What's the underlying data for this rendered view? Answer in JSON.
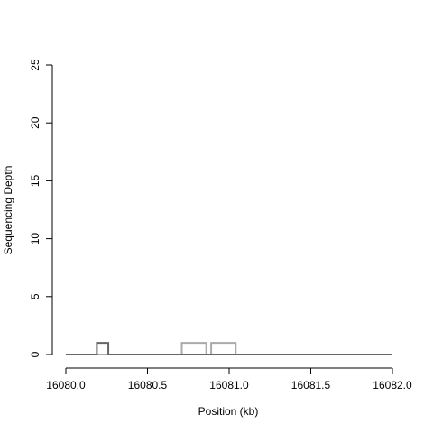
{
  "chart_data": {
    "type": "line",
    "xlabel": "Position (kb)",
    "ylabel": "Sequencing Depth",
    "xlim": [
      16080.0,
      16082.0
    ],
    "xticks": [
      {
        "value": 16080.0,
        "label": "16080.0"
      },
      {
        "value": 16080.5,
        "label": "16080.5"
      },
      {
        "value": 16081.0,
        "label": "16081.0"
      },
      {
        "value": 16081.5,
        "label": "16081.5"
      },
      {
        "value": 16082.0,
        "label": "16082.0"
      }
    ],
    "ylim": [
      0,
      25
    ],
    "yticks": [
      0,
      5,
      10,
      15,
      20,
      25
    ],
    "series": [
      {
        "color": "#aaaaaa",
        "x": [
          16080.0,
          16080.71,
          16080.71,
          16080.86,
          16080.86,
          16080.89,
          16080.89,
          16081.04,
          16081.04,
          16082.0
        ],
        "values": [
          0,
          0,
          1,
          1,
          0,
          0,
          1,
          1,
          0,
          0
        ]
      },
      {
        "color": "#666666",
        "x": [
          16080.0,
          16080.19,
          16080.19,
          16080.26,
          16080.26,
          16082.0
        ],
        "values": [
          0,
          0,
          1,
          1,
          0,
          0
        ]
      }
    ]
  }
}
